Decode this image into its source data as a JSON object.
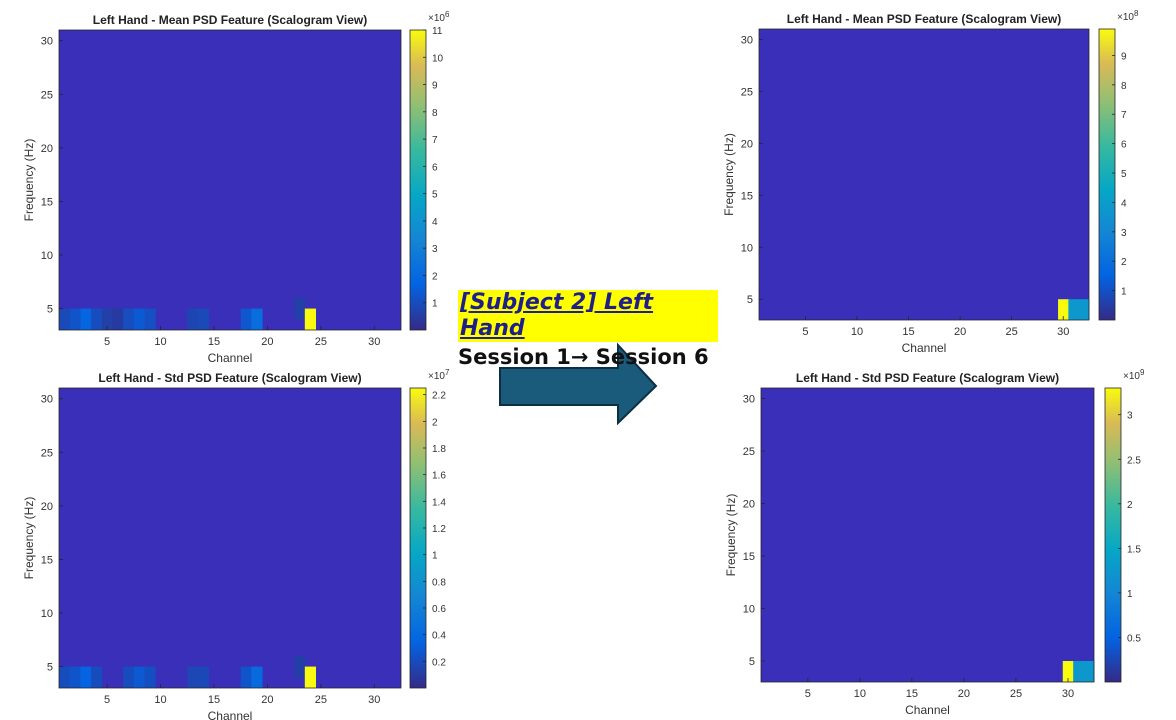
{
  "annotation": {
    "title": "[Subject 2] Left Hand",
    "subtitle": "Session 1→ Session 6"
  },
  "colors": {
    "background_cell": "#3a2fb8",
    "arrow_fill": "#1a5a7a",
    "arrow_stroke": "#0d2f44",
    "highlight": "#ffff00"
  },
  "chart_data": [
    {
      "type": "heatmap",
      "title": "Left Hand - Mean PSD Feature (Scalogram View)",
      "xlabel": "Channel",
      "ylabel": "Frequency (Hz)",
      "x_ticks": [
        "5",
        "10",
        "15",
        "20",
        "25",
        "30"
      ],
      "y_ticks": [
        "5",
        "10",
        "15",
        "20",
        "25",
        "30"
      ],
      "colorbar_exponent": "6",
      "colorbar_ticks": [
        "1",
        "2",
        "3",
        "4",
        "5",
        "6",
        "7",
        "8",
        "9",
        "10",
        "11"
      ],
      "colorbar_max": 11,
      "cells": [
        {
          "channel": 1,
          "freq": 4,
          "value": 0.9
        },
        {
          "channel": 2,
          "freq": 4,
          "value": 1.2
        },
        {
          "channel": 3,
          "freq": 4,
          "value": 1.8
        },
        {
          "channel": 4,
          "freq": 4,
          "value": 1.0
        },
        {
          "channel": 5,
          "freq": 4,
          "value": 0.6
        },
        {
          "channel": 6,
          "freq": 4,
          "value": 0.5
        },
        {
          "channel": 7,
          "freq": 4,
          "value": 1.0
        },
        {
          "channel": 8,
          "freq": 4,
          "value": 1.4
        },
        {
          "channel": 9,
          "freq": 4,
          "value": 1.1
        },
        {
          "channel": 13,
          "freq": 4,
          "value": 0.8
        },
        {
          "channel": 14,
          "freq": 4,
          "value": 0.9
        },
        {
          "channel": 18,
          "freq": 4,
          "value": 1.3
        },
        {
          "channel": 19,
          "freq": 4,
          "value": 2.2
        },
        {
          "channel": 23,
          "freq": 5,
          "value": 0.6
        },
        {
          "channel": 24,
          "freq": 4,
          "value": 11
        }
      ]
    },
    {
      "type": "heatmap",
      "title": "Left Hand - Std PSD Feature (Scalogram View)",
      "xlabel": "Channel",
      "ylabel": "Frequency (Hz)",
      "x_ticks": [
        "5",
        "10",
        "15",
        "20",
        "25",
        "30"
      ],
      "y_ticks": [
        "5",
        "10",
        "15",
        "20",
        "25",
        "30"
      ],
      "colorbar_exponent": "7",
      "colorbar_ticks": [
        "0.2",
        "0.4",
        "0.6",
        "0.8",
        "1",
        "1.2",
        "1.4",
        "1.6",
        "1.8",
        "2",
        "2.2"
      ],
      "colorbar_max": 2.25,
      "cells": [
        {
          "channel": 1,
          "freq": 4,
          "value": 0.2
        },
        {
          "channel": 2,
          "freq": 4,
          "value": 0.25
        },
        {
          "channel": 3,
          "freq": 4,
          "value": 0.35
        },
        {
          "channel": 4,
          "freq": 4,
          "value": 0.2
        },
        {
          "channel": 7,
          "freq": 4,
          "value": 0.2
        },
        {
          "channel": 8,
          "freq": 4,
          "value": 0.28
        },
        {
          "channel": 9,
          "freq": 4,
          "value": 0.22
        },
        {
          "channel": 13,
          "freq": 4,
          "value": 0.17
        },
        {
          "channel": 14,
          "freq": 4,
          "value": 0.18
        },
        {
          "channel": 18,
          "freq": 4,
          "value": 0.25
        },
        {
          "channel": 19,
          "freq": 4,
          "value": 0.42
        },
        {
          "channel": 23,
          "freq": 5,
          "value": 0.12
        },
        {
          "channel": 24,
          "freq": 4,
          "value": 2.25
        }
      ]
    },
    {
      "type": "heatmap",
      "title": "Left Hand - Mean PSD Feature (Scalogram View)",
      "xlabel": "Channel",
      "ylabel": "Frequency (Hz)",
      "x_ticks": [
        "5",
        "10",
        "15",
        "20",
        "25",
        "30"
      ],
      "y_ticks": [
        "5",
        "10",
        "15",
        "20",
        "25",
        "30"
      ],
      "colorbar_exponent": "8",
      "colorbar_ticks": [
        "1",
        "2",
        "3",
        "4",
        "5",
        "6",
        "7",
        "8",
        "9"
      ],
      "colorbar_max": 9.9,
      "cells": [
        {
          "channel": 30,
          "freq": 4,
          "value": 9.9
        },
        {
          "channel": 31,
          "freq": 4,
          "value": 3.8
        },
        {
          "channel": 32,
          "freq": 4,
          "value": 3.8
        }
      ]
    },
    {
      "type": "heatmap",
      "title": "Left Hand - Std PSD Feature (Scalogram View)",
      "xlabel": "Channel",
      "ylabel": "Frequency (Hz)",
      "x_ticks": [
        "5",
        "10",
        "15",
        "20",
        "25",
        "30"
      ],
      "y_ticks": [
        "5",
        "10",
        "15",
        "20",
        "25",
        "30"
      ],
      "colorbar_exponent": "9",
      "colorbar_ticks": [
        "0.5",
        "1",
        "1.5",
        "2",
        "2.5",
        "3"
      ],
      "colorbar_max": 3.3,
      "cells": [
        {
          "channel": 30,
          "freq": 4,
          "value": 3.3
        },
        {
          "channel": 31,
          "freq": 4,
          "value": 1.25
        },
        {
          "channel": 32,
          "freq": 4,
          "value": 1.25
        }
      ]
    }
  ]
}
